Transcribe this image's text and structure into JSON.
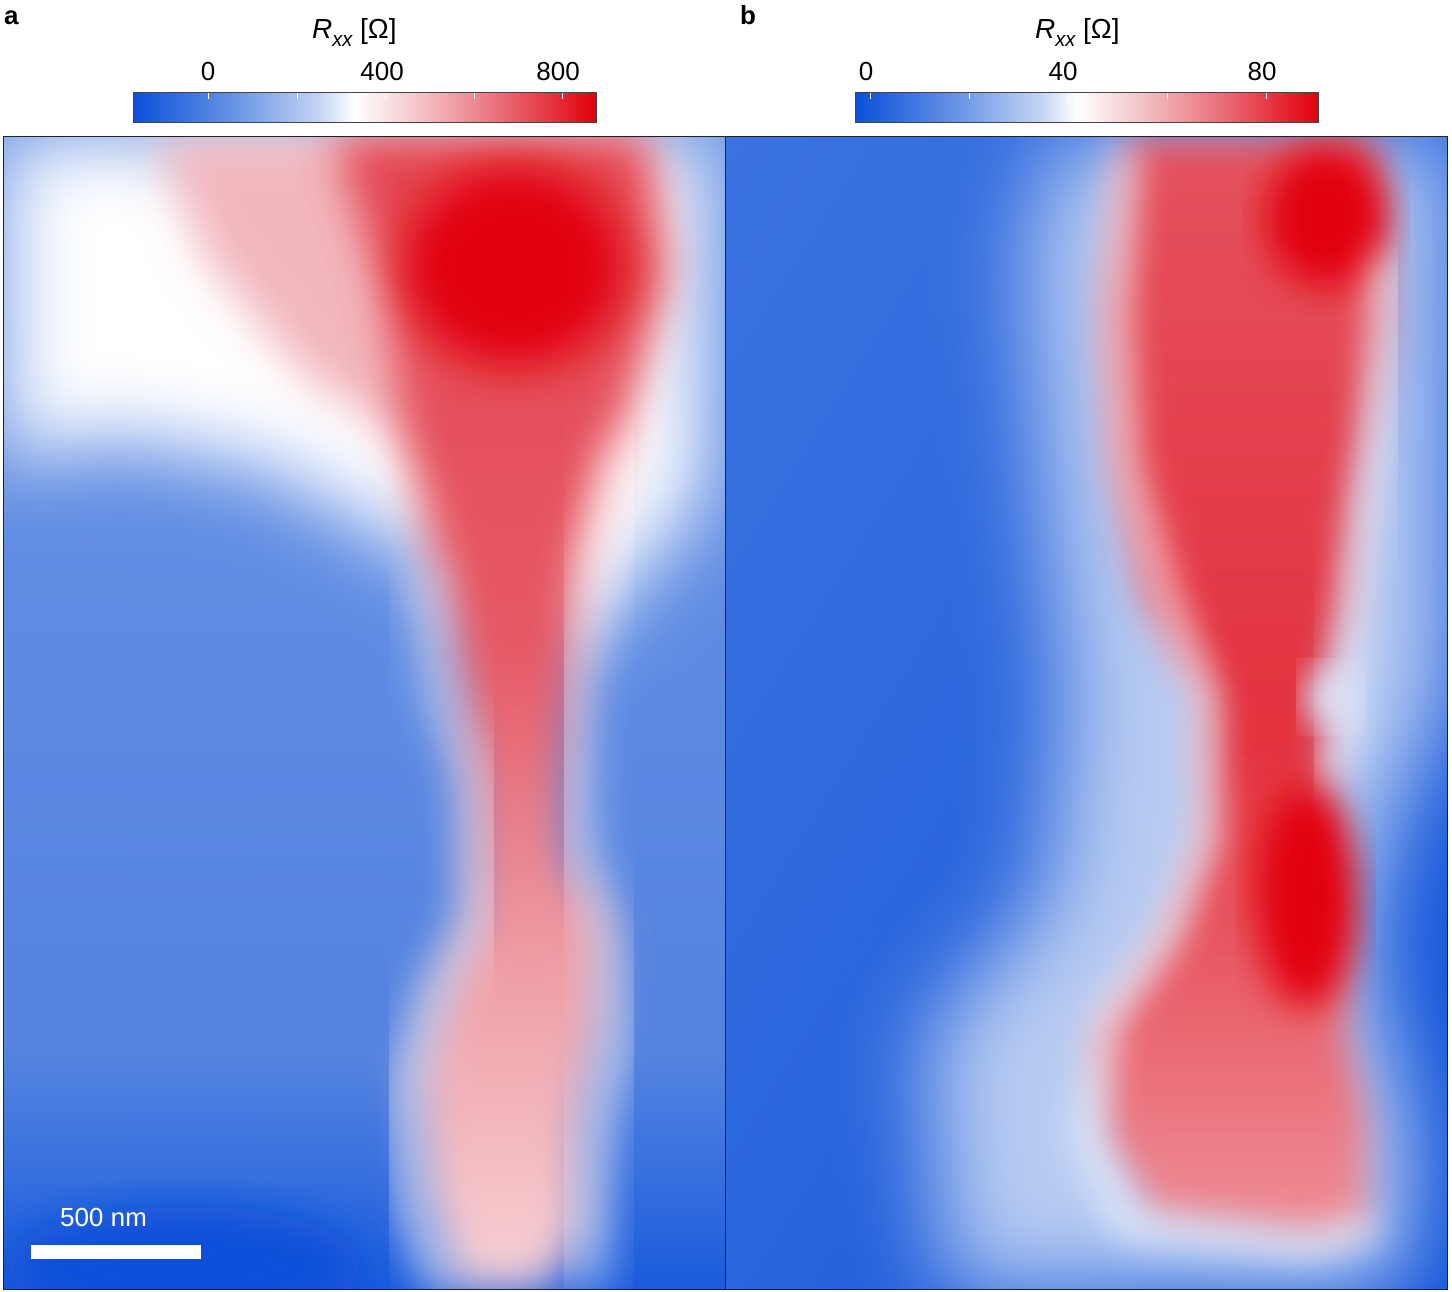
{
  "panels": [
    {
      "letter": "a",
      "colorbar": {
        "symbol": "R",
        "subscript": "xx",
        "unit": "[Ω]",
        "ticks": [
          "0",
          "400",
          "800"
        ]
      },
      "scalebar_label": "500 nm"
    },
    {
      "letter": "b",
      "colorbar": {
        "symbol": "R",
        "subscript": "xx",
        "unit": "[Ω]",
        "ticks": [
          "0",
          "40",
          "80"
        ]
      }
    }
  ],
  "colors": {
    "low": "#0b50d9",
    "mid": "#ffffff",
    "high": "#e2000b"
  }
}
